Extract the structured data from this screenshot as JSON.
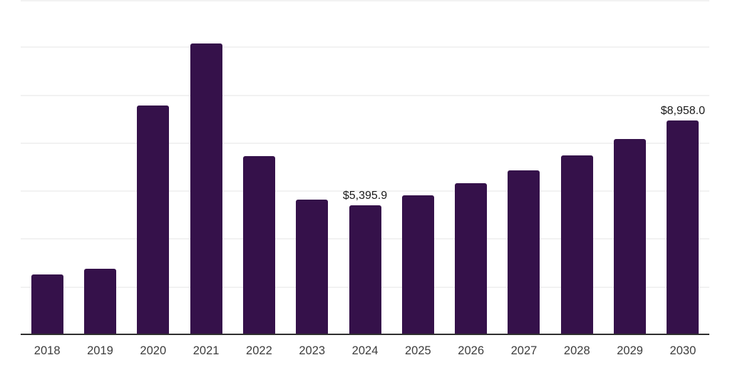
{
  "chart_data": {
    "type": "bar",
    "title": "",
    "xlabel": "",
    "ylabel": "",
    "categories": [
      "2018",
      "2019",
      "2020",
      "2021",
      "2022",
      "2023",
      "2024",
      "2025",
      "2026",
      "2027",
      "2028",
      "2029",
      "2030"
    ],
    "values": [
      2530,
      2760,
      9560,
      12150,
      7450,
      5650,
      5395.9,
      5820,
      6320,
      6870,
      7480,
      8180,
      8958.0
    ],
    "data_labels": [
      {
        "category": "2024",
        "text": "$5,395.9"
      },
      {
        "category": "2030",
        "text": "$8,958.0"
      }
    ],
    "ylim": [
      0,
      14000
    ],
    "gridline_step": 2000,
    "grid": "horizontal-only",
    "y_axis_tick_labels": "none",
    "legend": "none"
  },
  "colors": {
    "background": "#ffffff",
    "bar": "#35114A",
    "gridline": "#f2f2f2",
    "axis_line": "#2f2f2f",
    "tick_label": "#3d3d3d",
    "data_label": "#1a1a1a"
  }
}
